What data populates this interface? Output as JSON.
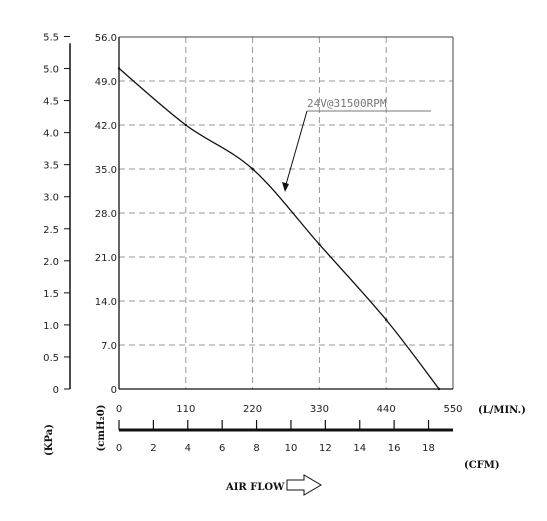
{
  "chart_data": {
    "type": "line",
    "title": "",
    "series": [
      {
        "name": "24V@31500RPM",
        "x": [
          0,
          110,
          220,
          330,
          440,
          527
        ],
        "y": [
          51.0,
          42.0,
          35.0,
          23.0,
          11.0,
          0
        ]
      }
    ],
    "x_axis_lmin": {
      "unit": "(L/MIN.)",
      "range": [
        0,
        550
      ],
      "ticks": [
        "0",
        "110",
        "220",
        "330",
        "440",
        "550"
      ]
    },
    "x_axis_cfm": {
      "unit": "(CFM)",
      "ticks": [
        "0",
        "2",
        "4",
        "6",
        "8",
        "10",
        "12",
        "14",
        "16",
        "18"
      ]
    },
    "y_axis_cmh2o": {
      "unit": "(cmH₂0)",
      "range": [
        0,
        56
      ],
      "ticks": [
        "0",
        "7.0",
        "14.0",
        "21.0",
        "28.0",
        "35.0",
        "42.0",
        "49.0",
        "56.0"
      ]
    },
    "y_axis_kpa": {
      "unit": "(KPa)",
      "ticks": [
        "0",
        "0.5",
        "1.0",
        "1.5",
        "2.0",
        "2.5",
        "3.0",
        "3.5",
        "4.0",
        "4.5",
        "5.0",
        "5.5"
      ]
    },
    "footer_label": "AIR FLOW",
    "grid": true
  }
}
